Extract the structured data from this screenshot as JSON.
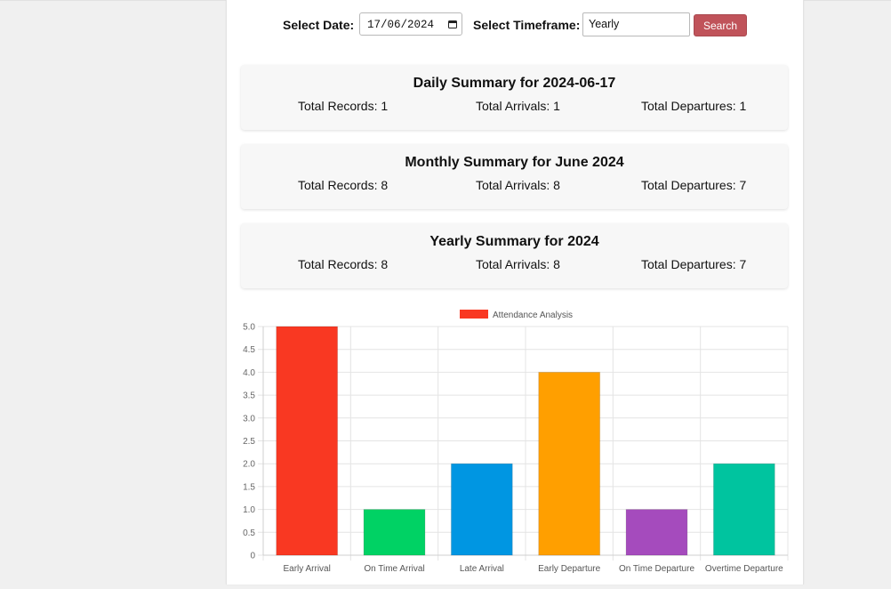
{
  "filters": {
    "date_label": "Select Date:",
    "date_value": "17/06/2024",
    "timeframe_label": "Select Timeframe:",
    "timeframe_value": "Yearly",
    "search_label": "Search"
  },
  "daily": {
    "title": "Daily Summary for 2024-06-17",
    "records": "Total Records: 1",
    "arrivals": "Total Arrivals: 1",
    "departures": "Total Departures: 1"
  },
  "monthly": {
    "title": "Monthly Summary for June 2024",
    "records": "Total Records: 8",
    "arrivals": "Total Arrivals: 8",
    "departures": "Total Departures: 7"
  },
  "yearly": {
    "title": "Yearly Summary for 2024",
    "records": "Total Records: 8",
    "arrivals": "Total Arrivals: 8",
    "departures": "Total Departures: 7"
  },
  "chart_data": {
    "type": "bar",
    "categories": [
      "Early Arrival",
      "On Time Arrival",
      "Late Arrival",
      "Early Departure",
      "On Time Departure",
      "Overtime Departure"
    ],
    "series": [
      {
        "name": "Attendance Analysis",
        "values": [
          5,
          1,
          2,
          4,
          1,
          2
        ]
      }
    ],
    "bar_colors": [
      "#f93822",
      "#00d264",
      "#0096e2",
      "#ff9f00",
      "#a54bbd",
      "#00c49f"
    ],
    "legend_color": "#f93822",
    "legend_position": "top",
    "ylim": [
      0,
      5
    ],
    "yticks": [
      "0",
      "0.5",
      "1.0",
      "1.5",
      "2.0",
      "2.5",
      "3.0",
      "3.5",
      "4.0",
      "4.5",
      "5.0"
    ],
    "grid": true
  }
}
